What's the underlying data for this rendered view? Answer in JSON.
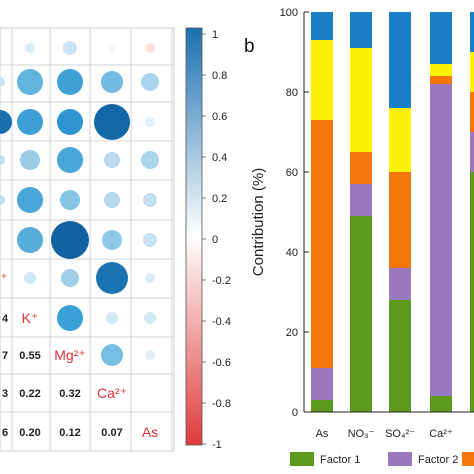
{
  "panel_b_label": "b",
  "correlation_matrix": {
    "colorbar_ticks": [
      "1",
      "0.8",
      "0.6",
      "0.4",
      "0.2",
      "0",
      "-0.2",
      "-0.4",
      "-0.6",
      "-0.8",
      "-1"
    ],
    "colorbar_range": [
      -1,
      1
    ],
    "colorbar_colors": {
      "positive": "#1a70b0",
      "zero": "#ffffff",
      "negative": "#e03b3b"
    },
    "diagonal_labels": [
      "K⁺",
      "Mg²⁺",
      "Ca²⁺",
      "As"
    ],
    "lower_left_values": [
      {
        "row": 7,
        "text": "4"
      },
      {
        "row": 8,
        "text": "7"
      },
      {
        "row": 8,
        "text": "0.55"
      },
      {
        "row": 9,
        "text": "3"
      },
      {
        "row": 9,
        "text": "0.22"
      },
      {
        "row": 9,
        "text": "0.32"
      },
      {
        "row": 10,
        "text": "6"
      },
      {
        "row": 10,
        "text": "0.20"
      },
      {
        "row": 10,
        "text": "0.12"
      },
      {
        "row": 10,
        "text": "0.07"
      }
    ]
  },
  "chart_data": {
    "type": "bar",
    "stacked": true,
    "ylabel": "Contribution (%)",
    "ylim": [
      0,
      100
    ],
    "yticks": [
      "0",
      "20",
      "40",
      "60",
      "80",
      "100"
    ],
    "categories": [
      "As",
      "NO₃⁻",
      "SO₄²⁻",
      "Ca²⁺"
    ],
    "series": [
      {
        "name": "Factor 1",
        "color": "#5c9a1e",
        "values": [
          3,
          49,
          28,
          4
        ]
      },
      {
        "name": "Factor 2",
        "color": "#9a77bf",
        "values": [
          8,
          8,
          8,
          78
        ]
      },
      {
        "name": "",
        "color": "#f5760a",
        "values": [
          62,
          8,
          24,
          2
        ]
      },
      {
        "name": "",
        "color": "#fcf20a",
        "values": [
          20,
          26,
          16,
          3
        ]
      },
      {
        "name": "",
        "color": "#1a7ec6",
        "values": [
          7,
          9,
          24,
          13
        ]
      }
    ],
    "legend_position": "bottom"
  }
}
